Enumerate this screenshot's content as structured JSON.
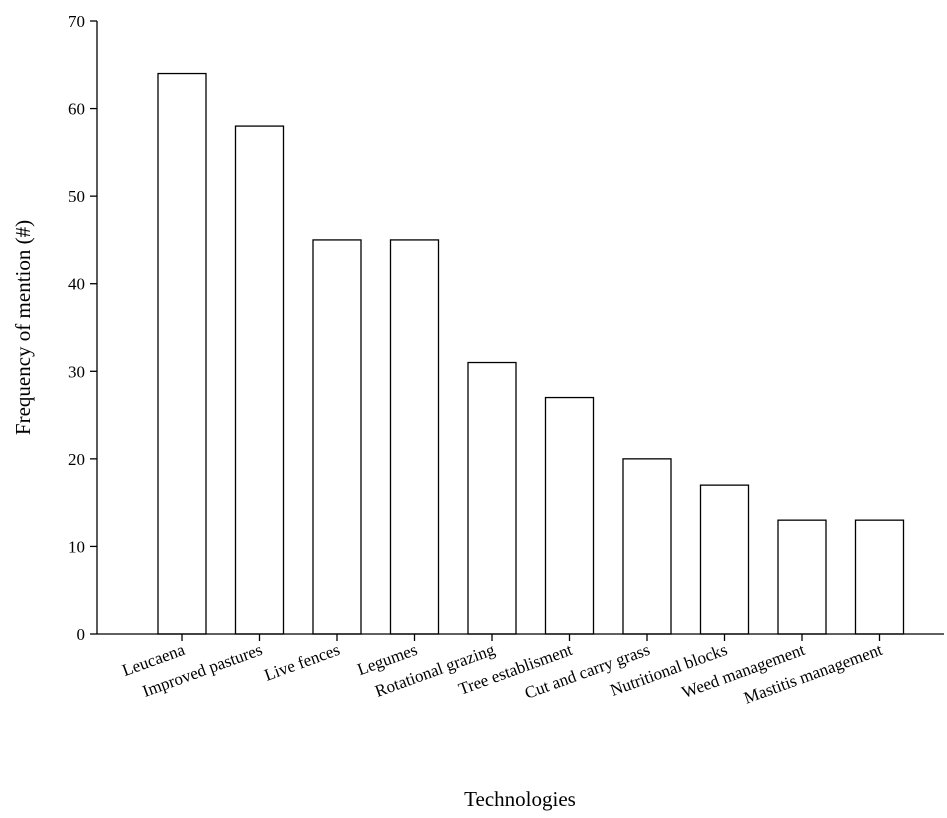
{
  "chart_data": {
    "type": "bar",
    "title": "",
    "xlabel": "Technologies",
    "ylabel": "Frequency of mention (#)",
    "ylim": [
      0,
      70
    ],
    "yticks": [
      0,
      10,
      20,
      30,
      40,
      50,
      60,
      70
    ],
    "grid": false,
    "categories": [
      "Leucaena",
      "Improved pastures",
      "Live fences",
      "Legumes",
      "Rotational grazing",
      "Tree establisment",
      "Cut and carry grass",
      "Nutritional blocks",
      "Weed management",
      "Mastitis management"
    ],
    "values": [
      64,
      58,
      45,
      45,
      31,
      27,
      20,
      17,
      13,
      13
    ],
    "bar_fill": "#ffffff",
    "bar_stroke": "#000000"
  }
}
